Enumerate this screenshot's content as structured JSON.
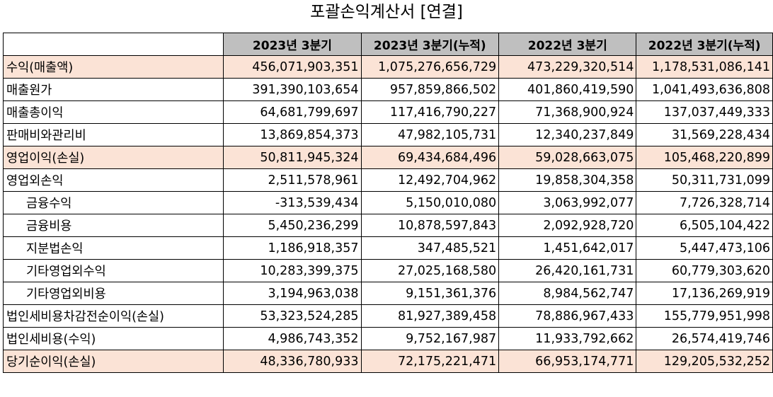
{
  "title": "포괄손익계산서 [연결]",
  "columns": [
    "",
    "2023년 3분기",
    "2023년 3분기(누적)",
    "2022년 3분기",
    "2022년 3분기(누적)"
  ],
  "rows": [
    {
      "label": "수익(매출액)",
      "values": [
        "456,071,903,351",
        "1,075,276,656,729",
        "473,229,320,514",
        "1,178,531,086,141"
      ],
      "highlight": true,
      "indent": false
    },
    {
      "label": "매출원가",
      "values": [
        "391,390,103,654",
        "957,859,866,502",
        "401,860,419,590",
        "1,041,493,636,808"
      ],
      "highlight": false,
      "indent": false
    },
    {
      "label": "매출총이익",
      "values": [
        "64,681,799,697",
        "117,416,790,227",
        "71,368,900,924",
        "137,037,449,333"
      ],
      "highlight": false,
      "indent": false
    },
    {
      "label": "판매비와관리비",
      "values": [
        "13,869,854,373",
        "47,982,105,731",
        "12,340,237,849",
        "31,569,228,434"
      ],
      "highlight": false,
      "indent": false
    },
    {
      "label": "영업이익(손실)",
      "values": [
        "50,811,945,324",
        "69,434,684,496",
        "59,028,663,075",
        "105,468,220,899"
      ],
      "highlight": true,
      "indent": false
    },
    {
      "label": "영업외손익",
      "values": [
        "2,511,578,961",
        "12,492,704,962",
        "19,858,304,358",
        "50,311,731,099"
      ],
      "highlight": false,
      "indent": false
    },
    {
      "label": "금융수익",
      "values": [
        "-313,539,434",
        "5,150,010,080",
        "3,063,992,077",
        "7,726,328,714"
      ],
      "highlight": false,
      "indent": true
    },
    {
      "label": "금융비용",
      "values": [
        "5,450,236,299",
        "10,878,597,843",
        "2,092,928,720",
        "6,505,104,422"
      ],
      "highlight": false,
      "indent": true
    },
    {
      "label": "지분법손익",
      "values": [
        "1,186,918,357",
        "347,485,521",
        "1,451,642,017",
        "5,447,473,106"
      ],
      "highlight": false,
      "indent": true
    },
    {
      "label": "기타영업외수익",
      "values": [
        "10,283,399,375",
        "27,025,168,580",
        "26,420,161,731",
        "60,779,303,620"
      ],
      "highlight": false,
      "indent": true
    },
    {
      "label": "기타영업외비용",
      "values": [
        "3,194,963,038",
        "9,151,361,376",
        "8,984,562,747",
        "17,136,269,919"
      ],
      "highlight": false,
      "indent": true
    },
    {
      "label": "법인세비용차감전순이익(손실)",
      "values": [
        "53,323,524,285",
        "81,927,389,458",
        "78,886,967,433",
        "155,779,951,998"
      ],
      "highlight": false,
      "indent": false
    },
    {
      "label": "법인세비용(수익)",
      "values": [
        "4,986,743,352",
        "9,752,167,987",
        "11,933,792,662",
        "26,574,419,746"
      ],
      "highlight": false,
      "indent": false
    },
    {
      "label": "당기순이익(손실)",
      "values": [
        "48,336,780,933",
        "72,175,221,471",
        "66,953,174,771",
        "129,205,532,252"
      ],
      "highlight": true,
      "indent": false
    }
  ],
  "colors": {
    "header_bg": "#bfbfbf",
    "highlight_bg": "#fbe3d6",
    "border": "#000000"
  }
}
